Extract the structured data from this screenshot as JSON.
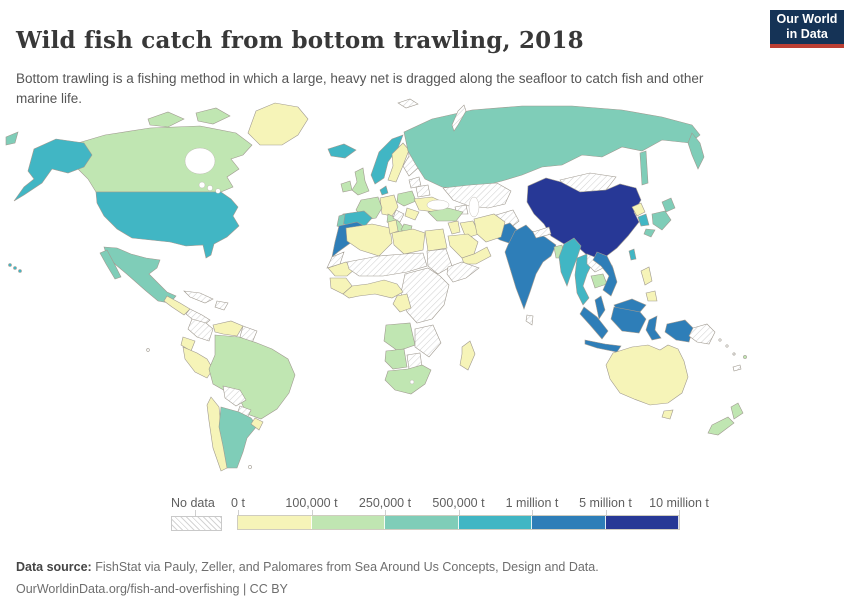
{
  "header": {
    "title": "Wild fish catch from bottom trawling, 2018",
    "subtitle": "Bottom trawling is a fishing method in which a large, heavy net is dragged along the seafloor to catch fish and other marine life."
  },
  "logo": {
    "line1": "Our World",
    "line2": "in Data",
    "bg_color": "#153356",
    "accent_color": "#bc3f33"
  },
  "legend": {
    "no_data_label": "No data",
    "tick_labels": [
      "0 t",
      "100,000 t",
      "250,000 t",
      "500,000 t",
      "1 million t",
      "5 million t",
      "10 million t"
    ],
    "bins": [
      {
        "range": "0 t – 100,000 t",
        "bucket": "b0",
        "color": "#f6f4b8"
      },
      {
        "range": "100,000 t – 250,000 t",
        "bucket": "b1",
        "color": "#c0e6b2"
      },
      {
        "range": "250,000 t – 500,000 t",
        "bucket": "b2",
        "color": "#7fcdb8"
      },
      {
        "range": "500,000 t – 1 million t",
        "bucket": "b3",
        "color": "#41b6c4"
      },
      {
        "range": "1 million t – 5 million t",
        "bucket": "b4",
        "color": "#2e7eb8"
      },
      {
        "range": "5 million t – 10 million t",
        "bucket": "b5",
        "color": "#273896"
      }
    ]
  },
  "footer": {
    "source_label": "Data source:",
    "source_text": " FishStat via Pauly, Zeller, and Palomares from Sea Around Us Concepts, Design and Data.",
    "license_link": "OurWorldinData.org/fish-and-overfishing",
    "license_suffix": " | CC BY"
  },
  "chart_data": {
    "type": "choropleth_map",
    "title": "Wild fish catch from bottom trawling, 2018",
    "unit": "tonnes",
    "no_data_style": "hatched",
    "palette": {
      "b0": "#f6f4b8",
      "b1": "#c0e6b2",
      "b2": "#7fcdb8",
      "b3": "#41b6c4",
      "b4": "#2e7eb8",
      "b5": "#273896"
    },
    "countries": {
      "greenland": "b0",
      "canada": "b1",
      "usa": "b3",
      "hawaii": "b3",
      "mexico": "b2",
      "guatemala": "b0",
      "panama_costa_rica": "no_data",
      "cuba": "no_data",
      "hispaniola": "no_data",
      "colombia": "no_data",
      "venezuela": "b0",
      "guyanas": "no_data",
      "ecuador": "b0",
      "peru": "b0",
      "brazil": "b1",
      "bolivia": "no_data",
      "paraguay": "no_data",
      "chile": "b0",
      "argentina": "b2",
      "uruguay": "b0",
      "falklands": "no_data",
      "galapagos": "no_data",
      "iceland": "b3",
      "ireland": "b1",
      "uk": "b1",
      "norway": "b3",
      "sweden": "b0",
      "finland": "no_data",
      "baltics": "no_data",
      "denmark": "b3",
      "germany": "b0",
      "france": "b1",
      "spain": "b3",
      "portugal": "b2",
      "italy": "b1",
      "poland": "b1",
      "belarus": "no_data",
      "ukraine": "b0",
      "romania_bulgaria": "b0",
      "balkans": "no_data",
      "greece": "b1",
      "svalbard": "no_data",
      "novaya_zemlya": "no_data",
      "russia": "b2",
      "kazakhstan_central_asia": "no_data",
      "caucasus": "no_data",
      "mongolia": "no_data",
      "china": "b5",
      "taiwan": "b3",
      "north_korea": "b0",
      "south_korea": "b3",
      "japan": "b2",
      "india": "b4",
      "pakistan": "b4",
      "afghanistan": "no_data",
      "nepal": "no_data",
      "bangladesh": "b1",
      "sri_lanka": "no_data",
      "turkey": "b1",
      "levant": "b0",
      "iraq": "b0",
      "iran": "b0",
      "saudi_arabia": "b0",
      "yemen_oman": "b0",
      "morocco": "b4",
      "western_sahara": "no_data",
      "algeria": "b0",
      "tunisia": "b0",
      "libya": "b0",
      "egypt": "b0",
      "mauritania": "b0",
      "sahel": "no_data",
      "sudan": "no_data",
      "horn_of_africa": "no_data",
      "senegal_guinea": "b0",
      "west_africa_coast": "b0",
      "cameroon_gabon": "b0",
      "central_africa": "no_data",
      "angola": "b1",
      "zambia_mozambique": "no_data",
      "namibia": "b1",
      "botswana": "no_data",
      "south_africa": "b1",
      "madagascar": "b0",
      "myanmar": "b3",
      "thailand": "b3",
      "laos": "no_data",
      "cambodia": "b1",
      "vietnam": "b4",
      "malaysia": "b4",
      "indonesia": "b4",
      "philippines": "b0",
      "papua_new_guinea": "no_data",
      "pacific_islands": "no_data",
      "new_caledonia": "no_data",
      "australia": "b0",
      "new_zealand": "b1",
      "fiji": "b1"
    }
  }
}
